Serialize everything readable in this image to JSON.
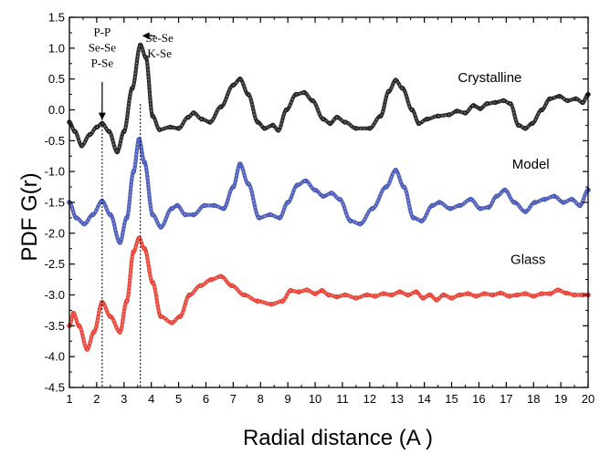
{
  "chart_data": {
    "type": "line",
    "xlabel": "Radial distance (A )",
    "ylabel": "PDF G(r)",
    "xlim": [
      1,
      20
    ],
    "ylim": [
      -4.5,
      1.5
    ],
    "x_ticks": [
      1,
      2,
      3,
      4,
      5,
      6,
      7,
      8,
      9,
      10,
      11,
      12,
      13,
      14,
      15,
      16,
      17,
      18,
      19,
      20
    ],
    "y_ticks": [
      1.5,
      1.0,
      0.5,
      0.0,
      -0.5,
      -1.0,
      -1.5,
      -2.0,
      -2.5,
      -3.0,
      -3.5,
      -4.0,
      -4.5
    ],
    "y_tick_labels": [
      "1.5",
      "1.0",
      "0.5",
      "0.0",
      "-0.5",
      "-1.0",
      "-1.5",
      "-2.0",
      "-2.5",
      "-3.0",
      "-3.5",
      "-4.0",
      "-4.5"
    ],
    "series": [
      {
        "name": "Crystalline",
        "color": "#1a1a1a",
        "points": [
          [
            1.0,
            -0.2
          ],
          [
            1.2,
            -0.35
          ],
          [
            1.45,
            -0.58
          ],
          [
            1.75,
            -0.4
          ],
          [
            2.0,
            -0.28
          ],
          [
            2.2,
            -0.22
          ],
          [
            2.45,
            -0.35
          ],
          [
            2.75,
            -0.68
          ],
          [
            3.0,
            -0.35
          ],
          [
            3.3,
            0.35
          ],
          [
            3.6,
            1.05
          ],
          [
            3.8,
            0.85
          ],
          [
            4.05,
            -0.1
          ],
          [
            4.3,
            -0.32
          ],
          [
            4.7,
            -0.28
          ],
          [
            5.0,
            -0.3
          ],
          [
            5.35,
            -0.12
          ],
          [
            5.55,
            -0.05
          ],
          [
            5.85,
            -0.15
          ],
          [
            6.15,
            -0.2
          ],
          [
            6.55,
            0.05
          ],
          [
            7.0,
            0.4
          ],
          [
            7.25,
            0.5
          ],
          [
            7.55,
            0.25
          ],
          [
            7.9,
            -0.2
          ],
          [
            8.15,
            -0.3
          ],
          [
            8.45,
            -0.25
          ],
          [
            8.65,
            -0.33
          ],
          [
            8.95,
            0.0
          ],
          [
            9.3,
            0.25
          ],
          [
            9.6,
            0.28
          ],
          [
            9.9,
            0.15
          ],
          [
            10.3,
            -0.15
          ],
          [
            10.55,
            -0.22
          ],
          [
            10.8,
            -0.12
          ],
          [
            11.1,
            -0.2
          ],
          [
            11.5,
            -0.3
          ],
          [
            12.0,
            -0.3
          ],
          [
            12.4,
            -0.1
          ],
          [
            12.7,
            0.3
          ],
          [
            12.95,
            0.48
          ],
          [
            13.2,
            0.35
          ],
          [
            13.55,
            0.0
          ],
          [
            13.8,
            -0.22
          ],
          [
            14.1,
            -0.15
          ],
          [
            14.5,
            -0.1
          ],
          [
            14.9,
            -0.08
          ],
          [
            15.2,
            -0.02
          ],
          [
            15.5,
            -0.05
          ],
          [
            15.8,
            0.07
          ],
          [
            16.05,
            0.02
          ],
          [
            16.3,
            0.1
          ],
          [
            16.6,
            0.12
          ],
          [
            16.9,
            0.15
          ],
          [
            17.15,
            0.1
          ],
          [
            17.45,
            -0.25
          ],
          [
            17.7,
            -0.3
          ],
          [
            17.95,
            -0.22
          ],
          [
            18.3,
            0.0
          ],
          [
            18.6,
            0.18
          ],
          [
            18.95,
            0.22
          ],
          [
            19.25,
            0.15
          ],
          [
            19.55,
            0.18
          ],
          [
            19.8,
            0.12
          ],
          [
            20.0,
            0.25
          ]
        ]
      },
      {
        "name": "Model",
        "color": "#3f51b5",
        "points": [
          [
            1.0,
            -1.5
          ],
          [
            1.25,
            -1.75
          ],
          [
            1.55,
            -1.85
          ],
          [
            1.85,
            -1.7
          ],
          [
            2.2,
            -1.48
          ],
          [
            2.5,
            -1.7
          ],
          [
            2.85,
            -2.15
          ],
          [
            3.1,
            -1.75
          ],
          [
            3.35,
            -1.0
          ],
          [
            3.55,
            -0.48
          ],
          [
            3.75,
            -0.85
          ],
          [
            4.05,
            -1.7
          ],
          [
            4.35,
            -1.9
          ],
          [
            4.75,
            -1.6
          ],
          [
            4.95,
            -1.55
          ],
          [
            5.25,
            -1.7
          ],
          [
            5.55,
            -1.7
          ],
          [
            5.95,
            -1.55
          ],
          [
            6.3,
            -1.55
          ],
          [
            6.65,
            -1.6
          ],
          [
            7.0,
            -1.25
          ],
          [
            7.25,
            -0.88
          ],
          [
            7.55,
            -1.2
          ],
          [
            7.95,
            -1.75
          ],
          [
            8.35,
            -1.7
          ],
          [
            8.7,
            -1.75
          ],
          [
            9.0,
            -1.5
          ],
          [
            9.35,
            -1.22
          ],
          [
            9.65,
            -1.15
          ],
          [
            10.0,
            -1.3
          ],
          [
            10.3,
            -1.4
          ],
          [
            10.6,
            -1.35
          ],
          [
            10.9,
            -1.45
          ],
          [
            11.3,
            -1.8
          ],
          [
            11.65,
            -1.85
          ],
          [
            12.1,
            -1.6
          ],
          [
            12.6,
            -1.25
          ],
          [
            12.95,
            -0.98
          ],
          [
            13.25,
            -1.25
          ],
          [
            13.6,
            -1.75
          ],
          [
            13.9,
            -1.8
          ],
          [
            14.3,
            -1.55
          ],
          [
            14.55,
            -1.5
          ],
          [
            14.95,
            -1.6
          ],
          [
            15.3,
            -1.55
          ],
          [
            15.7,
            -1.45
          ],
          [
            16.05,
            -1.6
          ],
          [
            16.35,
            -1.58
          ],
          [
            16.65,
            -1.4
          ],
          [
            16.95,
            -1.3
          ],
          [
            17.3,
            -1.5
          ],
          [
            17.7,
            -1.65
          ],
          [
            18.05,
            -1.5
          ],
          [
            18.4,
            -1.45
          ],
          [
            18.75,
            -1.4
          ],
          [
            19.1,
            -1.5
          ],
          [
            19.4,
            -1.45
          ],
          [
            19.7,
            -1.55
          ],
          [
            20.0,
            -1.3
          ]
        ]
      },
      {
        "name": "Glass",
        "color": "#e8382b",
        "points": [
          [
            1.0,
            -3.5
          ],
          [
            1.15,
            -3.3
          ],
          [
            1.35,
            -3.5
          ],
          [
            1.65,
            -3.88
          ],
          [
            1.9,
            -3.6
          ],
          [
            2.2,
            -3.12
          ],
          [
            2.5,
            -3.35
          ],
          [
            2.85,
            -3.6
          ],
          [
            3.1,
            -3.1
          ],
          [
            3.35,
            -2.3
          ],
          [
            3.55,
            -2.08
          ],
          [
            3.75,
            -2.25
          ],
          [
            4.05,
            -2.8
          ],
          [
            4.35,
            -3.35
          ],
          [
            4.75,
            -3.45
          ],
          [
            5.05,
            -3.35
          ],
          [
            5.4,
            -3.0
          ],
          [
            5.8,
            -2.85
          ],
          [
            6.2,
            -2.75
          ],
          [
            6.55,
            -2.7
          ],
          [
            6.95,
            -2.85
          ],
          [
            7.4,
            -3.0
          ],
          [
            7.9,
            -3.1
          ],
          [
            8.4,
            -3.15
          ],
          [
            8.8,
            -3.1
          ],
          [
            9.1,
            -2.93
          ],
          [
            9.4,
            -2.95
          ],
          [
            9.7,
            -2.92
          ],
          [
            10.0,
            -2.98
          ],
          [
            10.25,
            -2.93
          ],
          [
            10.5,
            -3.0
          ],
          [
            10.8,
            -3.03
          ],
          [
            11.1,
            -3.0
          ],
          [
            11.5,
            -3.05
          ],
          [
            11.9,
            -3.0
          ],
          [
            12.2,
            -3.02
          ],
          [
            12.5,
            -2.98
          ],
          [
            12.8,
            -3.0
          ],
          [
            13.1,
            -2.95
          ],
          [
            13.4,
            -3.0
          ],
          [
            13.7,
            -2.95
          ],
          [
            13.95,
            -3.05
          ],
          [
            14.2,
            -3.0
          ],
          [
            14.45,
            -3.08
          ],
          [
            14.7,
            -3.0
          ],
          [
            15.0,
            -3.05
          ],
          [
            15.3,
            -3.0
          ],
          [
            15.6,
            -2.98
          ],
          [
            15.9,
            -3.02
          ],
          [
            16.2,
            -2.98
          ],
          [
            16.5,
            -3.0
          ],
          [
            16.8,
            -2.97
          ],
          [
            17.1,
            -3.02
          ],
          [
            17.4,
            -3.0
          ],
          [
            17.7,
            -2.98
          ],
          [
            18.0,
            -3.02
          ],
          [
            18.3,
            -2.98
          ],
          [
            18.6,
            -2.98
          ],
          [
            18.9,
            -2.92
          ],
          [
            19.2,
            -2.97
          ],
          [
            19.5,
            -3.0
          ],
          [
            19.8,
            -3.0
          ],
          [
            20.0,
            -3.0
          ]
        ]
      }
    ],
    "series_labels": [
      {
        "text": "Crystalline",
        "x": 16.4,
        "y": 0.45
      },
      {
        "text": "Model",
        "x": 17.9,
        "y": -0.95
      },
      {
        "text": "Glass",
        "x": 17.8,
        "y": -2.5
      }
    ],
    "vlines": [
      {
        "x": 2.2,
        "style": "dotted"
      },
      {
        "x": 3.6,
        "style": "dotted"
      }
    ],
    "annotations": [
      {
        "id": "left",
        "lines": [
          "P-P",
          "Se-Se",
          "P-Se"
        ],
        "x": 2.2,
        "y": 1.2
      },
      {
        "id": "right",
        "lines": [
          "Se-Se",
          "K-Se"
        ],
        "x": 4.3,
        "y": 1.1
      }
    ],
    "arrows": [
      {
        "id": "down-arrow",
        "from": [
          2.2,
          0.45
        ],
        "to": [
          2.2,
          -0.15
        ]
      },
      {
        "id": "left-arrow",
        "from": [
          4.15,
          1.2
        ],
        "to": [
          3.7,
          1.2
        ]
      }
    ],
    "grid": false,
    "legend": "none"
  }
}
